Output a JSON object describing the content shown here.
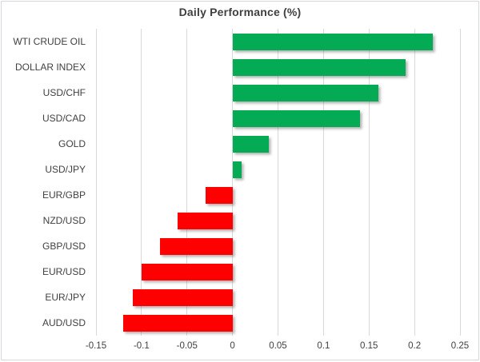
{
  "chart": {
    "title": "Daily Performance (%)"
  },
  "chart_data": {
    "type": "bar",
    "orientation": "horizontal",
    "title": "Daily Performance (%)",
    "categories": [
      "WTI CRUDE OIL",
      "DOLLAR INDEX",
      "USD/CHF",
      "USD/CAD",
      "GOLD",
      "USD/JPY",
      "EUR/GBP",
      "NZD/USD",
      "GBP/USD",
      "EUR/USD",
      "EUR/JPY",
      "AUD/USD"
    ],
    "values": [
      0.22,
      0.19,
      0.16,
      0.14,
      0.04,
      0.01,
      -0.03,
      -0.06,
      -0.08,
      -0.1,
      -0.11,
      -0.12
    ],
    "xlabel": "",
    "ylabel": "",
    "xlim": [
      -0.15,
      0.25
    ],
    "x_ticks": [
      -0.15,
      -0.1,
      -0.05,
      0,
      0.05,
      0.1,
      0.15,
      0.2,
      0.25
    ],
    "x_tick_labels": [
      "-0.15",
      "-0.1",
      "-0.05",
      "0",
      "0.05",
      "0.1",
      "0.15",
      "0.2",
      "0.25"
    ],
    "grid": true,
    "legend": false,
    "colors": {
      "positive": "#04AA54",
      "negative": "#FF0000",
      "gridline": "#D9D9D9",
      "text": "#404040",
      "title_text": "#3F3F3F",
      "frame_border": "#D5D9DF",
      "background": "#FFFFFF"
    }
  }
}
